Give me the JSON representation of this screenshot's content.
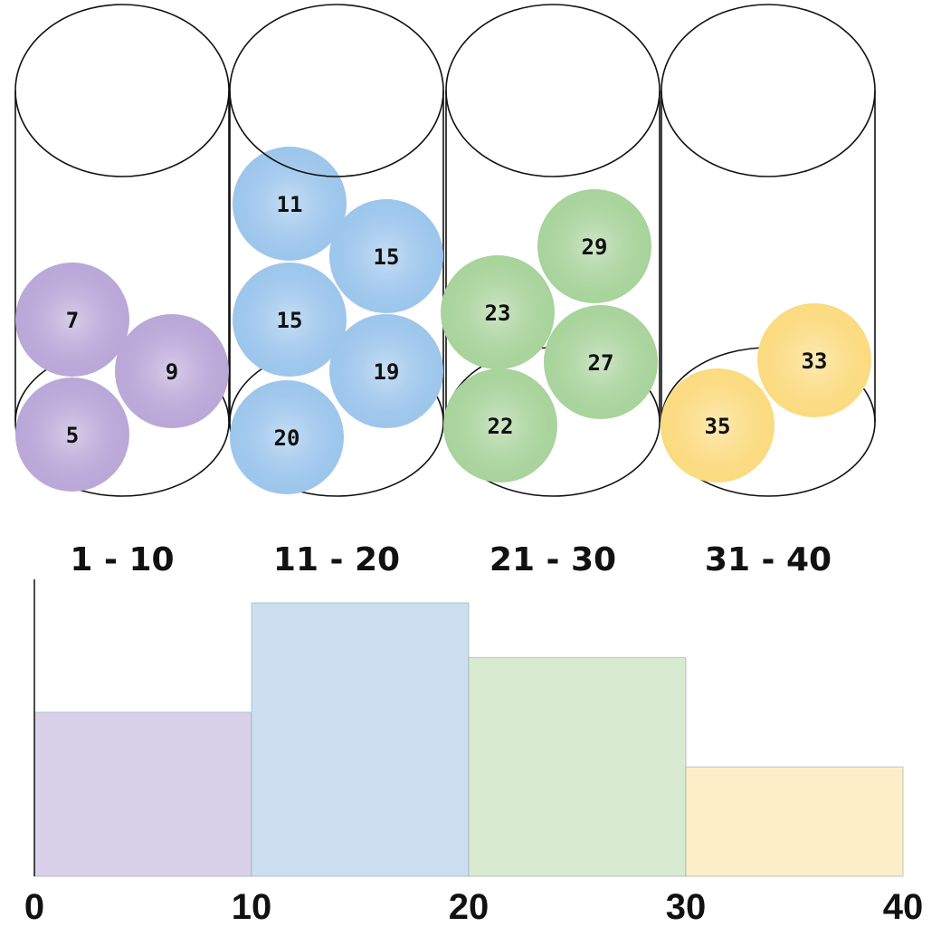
{
  "bins": [
    {
      "label": "1 - 10",
      "color": "#b9a7d8",
      "bar_color": "#d8d1e9",
      "balls": [
        "7",
        "9",
        "5"
      ]
    },
    {
      "label": "11 - 20",
      "color": "#9dc6ec",
      "bar_color": "#cbdff1",
      "balls": [
        "11",
        "15",
        "15",
        "19",
        "20"
      ]
    },
    {
      "label": "21 - 30",
      "color": "#a8d39b",
      "bar_color": "#d8ebd0",
      "balls": [
        "23",
        "29",
        "27",
        "22"
      ]
    },
    {
      "label": "31 - 40",
      "color": "#fbdb80",
      "bar_color": "#fcefc8",
      "balls": [
        "33",
        "35"
      ]
    }
  ],
  "chart_data": {
    "type": "bar",
    "bin_edges": [
      0,
      10,
      20,
      30,
      40
    ],
    "values": [
      3,
      5,
      4,
      2
    ],
    "x_ticks": [
      "0",
      "10",
      "20",
      "30",
      "40"
    ],
    "xlim": [
      0,
      40
    ],
    "grid": false
  }
}
